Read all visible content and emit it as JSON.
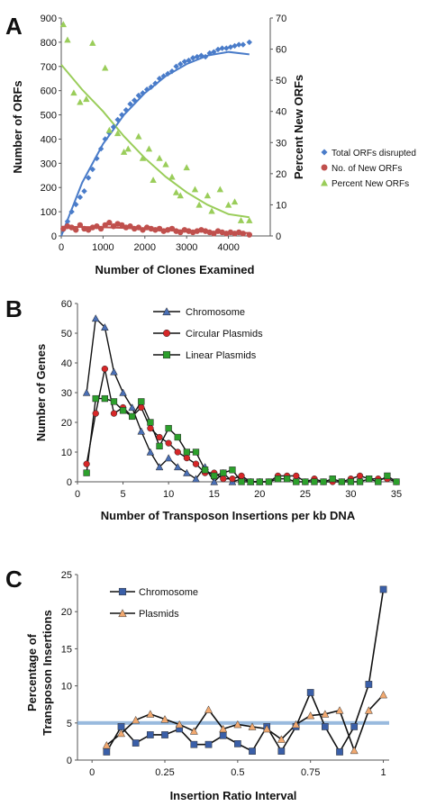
{
  "chart_data": [
    {
      "panel": "A",
      "type": "scatter",
      "title": "",
      "xlabel": "Number of Clones Examined",
      "ylabel": "Number of ORFs",
      "y2label": "Percent New ORFs",
      "xlim": [
        0,
        5000
      ],
      "ylim": [
        0,
        900
      ],
      "y2lim": [
        0,
        70
      ],
      "xticks": [
        0,
        1000,
        2000,
        3000,
        4000
      ],
      "yticks": [
        0,
        100,
        200,
        300,
        400,
        500,
        600,
        700,
        800,
        900
      ],
      "y2ticks": [
        0,
        10,
        20,
        30,
        40,
        50,
        60,
        70
      ],
      "legend": "right",
      "series": [
        {
          "name": "Total ORFs disrupted",
          "axis": "left",
          "color": "#4a7cc9",
          "marker": "diamond",
          "x": [
            50,
            150,
            250,
            350,
            450,
            550,
            650,
            750,
            850,
            950,
            1050,
            1150,
            1250,
            1350,
            1450,
            1550,
            1650,
            1750,
            1850,
            1950,
            2050,
            2150,
            2250,
            2350,
            2450,
            2550,
            2650,
            2750,
            2850,
            2950,
            3050,
            3150,
            3250,
            3350,
            3450,
            3550,
            3650,
            3750,
            3850,
            3950,
            4050,
            4150,
            4250,
            4350,
            4500
          ],
          "y": [
            25,
            60,
            100,
            130,
            160,
            185,
            240,
            275,
            320,
            360,
            400,
            425,
            450,
            480,
            500,
            520,
            545,
            560,
            580,
            590,
            605,
            615,
            630,
            650,
            660,
            670,
            680,
            700,
            710,
            720,
            725,
            735,
            740,
            745,
            740,
            755,
            760,
            770,
            775,
            775,
            780,
            785,
            790,
            790,
            800
          ]
        },
        {
          "name": "No. of New ORFs",
          "axis": "left",
          "color": "#c0504d",
          "marker": "circle",
          "x": [
            50,
            150,
            250,
            350,
            450,
            550,
            650,
            750,
            850,
            950,
            1050,
            1150,
            1250,
            1350,
            1450,
            1550,
            1650,
            1750,
            1850,
            1950,
            2050,
            2150,
            2250,
            2350,
            2450,
            2550,
            2650,
            2750,
            2850,
            2950,
            3050,
            3150,
            3250,
            3350,
            3450,
            3550,
            3650,
            3750,
            3850,
            3950,
            4050,
            4150,
            4250,
            4350,
            4500
          ],
          "y": [
            30,
            40,
            35,
            25,
            45,
            30,
            25,
            35,
            40,
            30,
            45,
            55,
            40,
            50,
            45,
            35,
            40,
            30,
            35,
            25,
            35,
            30,
            25,
            30,
            20,
            25,
            30,
            20,
            15,
            25,
            20,
            15,
            20,
            25,
            20,
            15,
            10,
            20,
            15,
            10,
            15,
            10,
            15,
            10,
            5
          ]
        },
        {
          "name": "Percent New ORFs",
          "axis": "right",
          "color": "#9acd5a",
          "marker": "triangle",
          "x": [
            50,
            150,
            300,
            450,
            600,
            750,
            1050,
            1150,
            1350,
            1500,
            1600,
            1850,
            1950,
            2100,
            2200,
            2350,
            2500,
            2650,
            2750,
            2850,
            3000,
            3200,
            3300,
            3500,
            3600,
            3800,
            4000,
            4150,
            4300,
            4500
          ],
          "y": [
            68,
            63,
            46,
            43,
            44,
            62,
            54,
            34,
            33,
            27,
            28,
            32,
            25,
            28,
            18,
            25,
            23,
            19,
            14,
            13,
            22,
            15,
            10,
            13,
            8,
            15,
            10,
            11,
            5,
            5
          ]
        }
      ],
      "trendlines": [
        {
          "series": "Total ORFs disrupted",
          "axis": "left",
          "color": "#4a7cc9",
          "x": [
            0,
            500,
            1000,
            1500,
            2000,
            2500,
            3000,
            3500,
            4000,
            4500
          ],
          "y": [
            0,
            220,
            380,
            500,
            590,
            660,
            710,
            745,
            760,
            750
          ]
        },
        {
          "series": "No. of New ORFs",
          "axis": "left",
          "color": "#c0504d",
          "x": [
            0,
            1000,
            2000,
            3000,
            4000,
            4500
          ],
          "y": [
            38,
            36,
            30,
            22,
            15,
            12
          ]
        },
        {
          "series": "Percent New ORFs",
          "axis": "right",
          "color": "#9acd5a",
          "x": [
            0,
            500,
            1000,
            1500,
            2000,
            2500,
            3000,
            3500,
            4000,
            4500
          ],
          "y": [
            55,
            47,
            40,
            32,
            25,
            19,
            14,
            10,
            7,
            6
          ]
        }
      ]
    },
    {
      "panel": "B",
      "type": "line",
      "title": "",
      "xlabel": "Number of Transposon Insertions per kb DNA",
      "ylabel": "Number of Genes",
      "xlim": [
        0,
        35
      ],
      "ylim": [
        0,
        60
      ],
      "xticks": [
        0,
        5,
        10,
        15,
        20,
        25,
        30,
        35
      ],
      "yticks": [
        0,
        10,
        20,
        30,
        40,
        50,
        60
      ],
      "legend": "top-center",
      "series": [
        {
          "name": "Chromosome",
          "color": "#4a6fb5",
          "marker": "triangle",
          "x": [
            1,
            2,
            3,
            4,
            5,
            6,
            7,
            8,
            9,
            10,
            11,
            12,
            13,
            14,
            15,
            16,
            17,
            18,
            19,
            20
          ],
          "y": [
            30,
            55,
            52,
            37,
            30,
            25,
            17,
            10,
            5,
            8,
            5,
            3,
            1,
            5,
            0,
            3,
            0,
            1,
            0,
            0
          ]
        },
        {
          "name": "Circular Plasmids",
          "color": "#d62728",
          "marker": "circle",
          "x": [
            1,
            2,
            3,
            4,
            5,
            6,
            7,
            8,
            9,
            10,
            11,
            12,
            13,
            14,
            15,
            16,
            17,
            18,
            19,
            20,
            21,
            22,
            23,
            24,
            25,
            26,
            27,
            28,
            29,
            30,
            31,
            32,
            33,
            34,
            35
          ],
          "y": [
            6,
            23,
            38,
            23,
            25,
            22,
            25,
            18,
            15,
            13,
            10,
            8,
            6,
            3,
            3,
            1,
            1,
            2,
            0,
            0,
            0,
            2,
            2,
            2,
            0,
            1,
            0,
            0,
            0,
            1,
            2,
            1,
            1,
            1,
            0
          ]
        },
        {
          "name": "Linear Plasmids",
          "color": "#2ca02c",
          "marker": "square",
          "x": [
            1,
            2,
            3,
            4,
            5,
            6,
            7,
            8,
            9,
            10,
            11,
            12,
            13,
            14,
            15,
            16,
            17,
            18,
            19,
            20,
            21,
            22,
            23,
            24,
            25,
            26,
            27,
            28,
            29,
            30,
            31,
            32,
            33,
            34,
            35
          ],
          "y": [
            3,
            28,
            28,
            27,
            24,
            22,
            27,
            20,
            12,
            18,
            15,
            10,
            10,
            4,
            2,
            3,
            4,
            0,
            0,
            0,
            0,
            1,
            1,
            0,
            0,
            0,
            0,
            1,
            0,
            0,
            0,
            1,
            0,
            2,
            0
          ]
        }
      ]
    },
    {
      "panel": "C",
      "type": "line",
      "title": "",
      "xlabel": "Insertion Ratio Interval",
      "ylabel": "Percentage of Transposon Insertions",
      "ylabel_lines": [
        "Percentage of",
        "Transposon Insertions"
      ],
      "xlim": [
        -0.05,
        1.02
      ],
      "ylim": [
        0,
        25
      ],
      "xticks": [
        0,
        0.25,
        0.5,
        0.75,
        1
      ],
      "xticklabels": [
        "0",
        "0.25",
        "0.5",
        "0.75",
        "1"
      ],
      "yticks": [
        0,
        5,
        10,
        15,
        20,
        25
      ],
      "reference_line": 5,
      "legend": "top-left",
      "series": [
        {
          "name": "Chromosome",
          "color": "#3a5fa8",
          "marker": "square",
          "x": [
            0.05,
            0.1,
            0.15,
            0.2,
            0.25,
            0.3,
            0.35,
            0.4,
            0.45,
            0.5,
            0.55,
            0.6,
            0.65,
            0.7,
            0.75,
            0.8,
            0.85,
            0.9,
            0.95,
            1.0
          ],
          "y": [
            1.1,
            4.5,
            2.3,
            3.4,
            3.4,
            4.2,
            2.1,
            2.1,
            3.3,
            2.2,
            1.2,
            4.5,
            1.2,
            4.5,
            9.1,
            4.5,
            1.1,
            4.5,
            10.2,
            23
          ]
        },
        {
          "name": "Plasmids",
          "color": "#f2a970",
          "marker": "triangle",
          "x": [
            0.05,
            0.1,
            0.15,
            0.2,
            0.25,
            0.3,
            0.35,
            0.4,
            0.45,
            0.5,
            0.55,
            0.6,
            0.65,
            0.7,
            0.75,
            0.8,
            0.85,
            0.9,
            0.95,
            1.0
          ],
          "y": [
            2.0,
            3.6,
            5.4,
            6.2,
            5.5,
            4.8,
            3.9,
            6.8,
            4.2,
            4.8,
            4.5,
            4.2,
            2.8,
            4.8,
            6.0,
            6.2,
            6.7,
            1.3,
            6.7,
            8.8
          ]
        }
      ]
    }
  ],
  "panel_labels": [
    "A",
    "B",
    "C"
  ]
}
